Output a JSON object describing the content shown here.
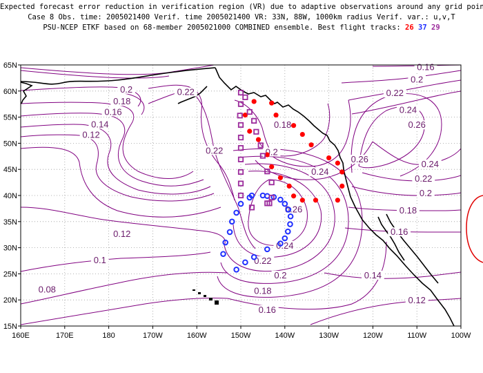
{
  "header": {
    "line1": "Expected forecast error reduction in verification region (VR) due to adaptive observations around any grid point.",
    "line2": "Case 8  Obs. time: 2005021400  Verif. time 2005021400  VR: 33N, 88W, 1000km radius  Verif. var.: u,v,T",
    "line3": "PSU-NCEP ETKF based on 68-member 2005021000 COMBINED ensemble.  Best flight tracks:",
    "tracks": [
      "26",
      "37",
      "29"
    ]
  },
  "map": {
    "lon_range": [
      160,
      260
    ],
    "lat_range": [
      15,
      65
    ],
    "lat_ticks": [
      "15N",
      "20N",
      "25N",
      "30N",
      "35N",
      "40N",
      "45N",
      "50N",
      "55N",
      "60N",
      "65N"
    ],
    "lon_ticks": [
      "160E",
      "170E",
      "180",
      "170W",
      "160W",
      "150W",
      "140W",
      "130W",
      "120W",
      "110W",
      "100W"
    ],
    "contour_color": "#800080",
    "contour_labels": [
      {
        "text": "0.2",
        "lon": 184,
        "lat": 60
      },
      {
        "text": "0.18",
        "lon": 183,
        "lat": 57.7
      },
      {
        "text": "0.16",
        "lon": 181,
        "lat": 55.7
      },
      {
        "text": "0.14",
        "lon": 178,
        "lat": 53.3
      },
      {
        "text": "0.12",
        "lon": 176,
        "lat": 51.3
      },
      {
        "text": "0.22",
        "lon": 197.5,
        "lat": 59.5
      },
      {
        "text": "0.22",
        "lon": 204,
        "lat": 48.3
      },
      {
        "text": "0.12",
        "lon": 183,
        "lat": 32.3
      },
      {
        "text": "0.1",
        "lon": 178,
        "lat": 27.3
      },
      {
        "text": "0.08",
        "lon": 166,
        "lat": 21.7
      },
      {
        "text": "0.18",
        "lon": 219.5,
        "lat": 53.2
      },
      {
        "text": "0.2",
        "lon": 217,
        "lat": 48
      },
      {
        "text": "0.24",
        "lon": 228,
        "lat": 44.2
      },
      {
        "text": "0.26",
        "lon": 222,
        "lat": 37
      },
      {
        "text": "0.24",
        "lon": 220,
        "lat": 30.1
      },
      {
        "text": "0.22",
        "lon": 215,
        "lat": 27.2
      },
      {
        "text": "0.2",
        "lon": 219,
        "lat": 24.4
      },
      {
        "text": "0.18",
        "lon": 215,
        "lat": 21.4
      },
      {
        "text": "0.16",
        "lon": 216,
        "lat": 17.8
      },
      {
        "text": "0.26",
        "lon": 237,
        "lat": 46.6
      },
      {
        "text": "0.24",
        "lon": 253,
        "lat": 45.7
      },
      {
        "text": "0.22",
        "lon": 251.5,
        "lat": 42.9
      },
      {
        "text": "0.2",
        "lon": 252,
        "lat": 40.1
      },
      {
        "text": "0.18",
        "lon": 248,
        "lat": 36.8
      },
      {
        "text": "0.16",
        "lon": 246,
        "lat": 32.7
      },
      {
        "text": "0.14",
        "lon": 240,
        "lat": 24.4
      },
      {
        "text": "0.12",
        "lon": 250,
        "lat": 19.6
      },
      {
        "text": "0.2",
        "lon": 250,
        "lat": 61.9
      },
      {
        "text": "0.22",
        "lon": 245,
        "lat": 59.3
      },
      {
        "text": "0.24",
        "lon": 248,
        "lat": 56.1
      },
      {
        "text": "0.26",
        "lon": 250,
        "lat": 53.2
      },
      {
        "text": "0.16",
        "lon": 252,
        "lat": 64.3
      }
    ],
    "flight_tracks": [
      {
        "id": "26",
        "color": "#ff0000",
        "marker": "dot",
        "points": [
          [
            213,
            58
          ],
          [
            217,
            57.7
          ],
          [
            211,
            55.4
          ],
          [
            218,
            55.4
          ],
          [
            222,
            53.4
          ],
          [
            212,
            52.3
          ],
          [
            224,
            51.7
          ],
          [
            214,
            50.7
          ],
          [
            226,
            49.7
          ],
          [
            216,
            47.8
          ],
          [
            230,
            47.2
          ],
          [
            232,
            46.2
          ],
          [
            217,
            45.5
          ],
          [
            233,
            44.5
          ],
          [
            219,
            43.4
          ],
          [
            221,
            41.8
          ],
          [
            233,
            41.8
          ],
          [
            222,
            39.9
          ],
          [
            224,
            39.1
          ],
          [
            227,
            39.1
          ],
          [
            232,
            39.1
          ]
        ]
      },
      {
        "id": "37",
        "color": "#2030ff",
        "marker": "ring",
        "points": [
          [
            215,
            40
          ],
          [
            216,
            39.9
          ],
          [
            217.5,
            39.7
          ],
          [
            219,
            39.2
          ],
          [
            220,
            38.4
          ],
          [
            220.8,
            37.3
          ],
          [
            221.3,
            36
          ],
          [
            221.2,
            34.5
          ],
          [
            220.7,
            33.1
          ],
          [
            220,
            31.8
          ],
          [
            219,
            30.8
          ],
          [
            216,
            29.7
          ],
          [
            213,
            28.2
          ],
          [
            211,
            27.2
          ],
          [
            209,
            25.8
          ],
          [
            206,
            28.8
          ],
          [
            206.5,
            31
          ],
          [
            207.5,
            33
          ],
          [
            208,
            35
          ],
          [
            209,
            36.7
          ],
          [
            210,
            38.4
          ],
          [
            212,
            39.6
          ],
          [
            212.5,
            40
          ]
        ]
      },
      {
        "id": "29",
        "color": "#9b2a9b",
        "marker": "square",
        "points": [
          [
            210,
            59.7
          ],
          [
            211,
            58.8
          ],
          [
            210,
            57.5
          ],
          [
            212,
            56
          ],
          [
            209.8,
            55.3
          ],
          [
            213,
            54.3
          ],
          [
            210,
            53.5
          ],
          [
            213.5,
            52.2
          ],
          [
            210,
            51.1
          ],
          [
            214.5,
            49.6
          ],
          [
            210,
            49.1
          ],
          [
            215,
            47.6
          ],
          [
            210,
            46.9
          ],
          [
            210,
            44.5
          ],
          [
            216,
            44.6
          ],
          [
            210,
            42.3
          ],
          [
            217,
            42.5
          ],
          [
            210,
            40
          ],
          [
            217,
            39.6
          ],
          [
            212.5,
            37.7
          ],
          [
            216,
            38.5
          ],
          [
            216.5,
            38.5
          ]
        ]
      }
    ]
  }
}
